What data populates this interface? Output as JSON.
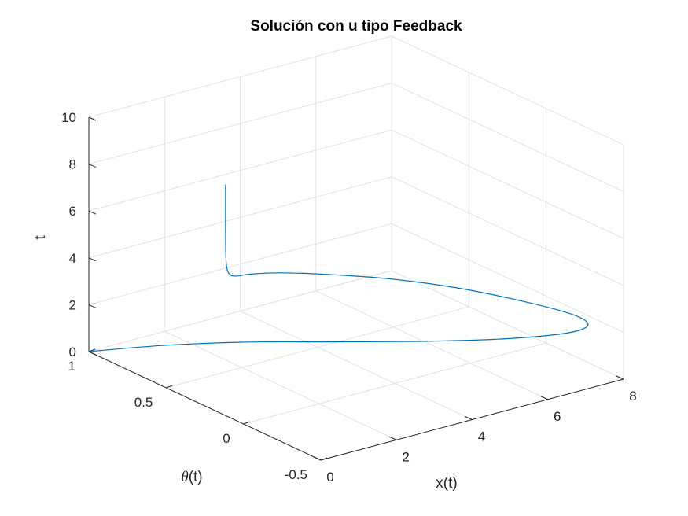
{
  "chart_data": {
    "type": "line3d",
    "title": "Solución con u tipo Feedback",
    "xlabel": "x(t)",
    "ylabel_symbol": "θ",
    "ylabel_suffix": "(t)",
    "zlabel": "t",
    "xlim": [
      0,
      8
    ],
    "ylim": [
      -0.5,
      1
    ],
    "zlim": [
      0,
      10
    ],
    "xticks": [
      {
        "v": 0,
        "label": "0"
      },
      {
        "v": 2,
        "label": "2"
      },
      {
        "v": 4,
        "label": "4"
      },
      {
        "v": 6,
        "label": "6"
      },
      {
        "v": 8,
        "label": "8"
      }
    ],
    "yticks": [
      {
        "v": -0.5,
        "label": "-0.5"
      },
      {
        "v": 0,
        "label": "0"
      },
      {
        "v": 0.5,
        "label": "0.5"
      },
      {
        "v": 1,
        "label": "1"
      }
    ],
    "zticks": [
      {
        "v": 0,
        "label": "0"
      },
      {
        "v": 2,
        "label": "2"
      },
      {
        "v": 4,
        "label": "4"
      },
      {
        "v": 6,
        "label": "6"
      },
      {
        "v": 8,
        "label": "8"
      },
      {
        "v": 10,
        "label": "10"
      }
    ],
    "grid": true,
    "series": [
      {
        "color": "#0072BD",
        "points": [
          [
            0,
            1,
            0
          ],
          [
            1.2,
            0.82,
            0.3
          ],
          [
            2.4,
            0.6,
            0.6
          ],
          [
            3.6,
            0.34,
            0.9
          ],
          [
            4.8,
            0.08,
            1.2
          ],
          [
            5.9,
            -0.16,
            1.55
          ],
          [
            6.7,
            -0.33,
            1.9
          ],
          [
            7.15,
            -0.42,
            2.2
          ],
          [
            7.3,
            -0.44,
            2.5
          ],
          [
            7.1,
            -0.38,
            2.8
          ],
          [
            6.5,
            -0.22,
            3.1
          ],
          [
            5.6,
            0.0,
            3.4
          ],
          [
            4.6,
            0.2,
            3.6
          ],
          [
            3.6,
            0.35,
            3.75
          ],
          [
            2.8,
            0.45,
            3.85
          ],
          [
            2.2,
            0.5,
            3.9
          ],
          [
            1.9,
            0.5,
            3.95
          ],
          [
            1.72,
            0.5,
            4.05
          ],
          [
            1.62,
            0.5,
            4.3
          ],
          [
            1.58,
            0.5,
            4.8
          ],
          [
            1.57,
            0.5,
            6.0
          ],
          [
            1.57,
            0.5,
            7.0
          ],
          [
            1.57,
            0.5,
            8.0
          ]
        ]
      }
    ]
  }
}
